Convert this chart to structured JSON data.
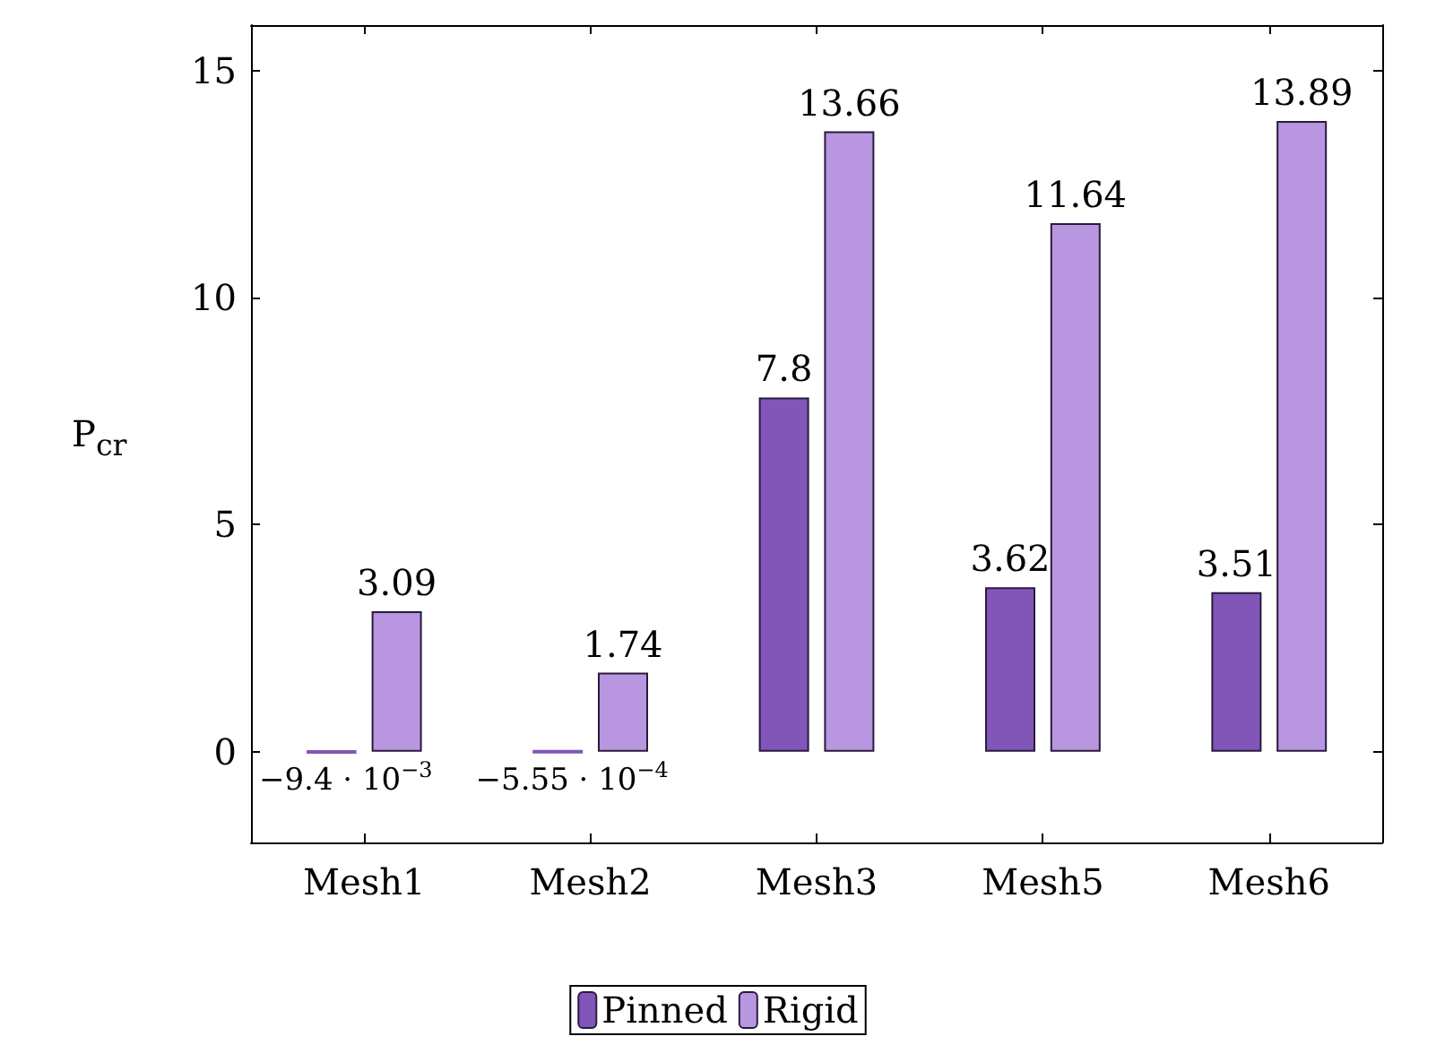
{
  "chart_data": {
    "type": "bar",
    "ylabel": "P$_{cr}$",
    "categories": [
      "Mesh1",
      "Mesh2",
      "Mesh3",
      "Mesh5",
      "Mesh6"
    ],
    "series": [
      {
        "name": "Pinned",
        "color": "#8156b8",
        "values": [
          -0.0094,
          -0.000555,
          7.8,
          3.62,
          3.51
        ],
        "value_labels": [
          "−9.4 · 10$^{−3}$",
          "−5.55 · 10$^{−4}$",
          "7.8",
          "3.62",
          "3.51"
        ]
      },
      {
        "name": "Rigid",
        "color": "#b896e0",
        "values": [
          3.09,
          1.74,
          13.66,
          11.64,
          13.89
        ],
        "value_labels": [
          "3.09",
          "1.74",
          "13.66",
          "11.64",
          "13.89"
        ]
      }
    ],
    "ylim": [
      -2,
      16
    ],
    "yticks": [
      0,
      5,
      10,
      15
    ],
    "grid": false,
    "legend": "bottom"
  }
}
